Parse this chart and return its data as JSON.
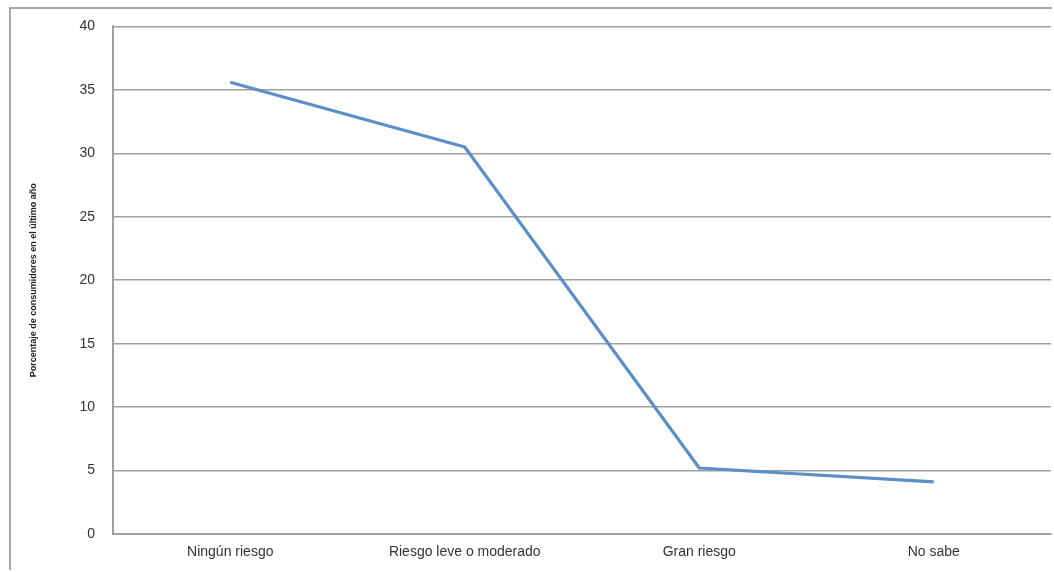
{
  "chart_data": {
    "type": "line",
    "ylabel": "Porcentaje de consumidores en el último año",
    "categories": [
      "Ningún riesgo",
      "Riesgo leve o moderado",
      "Gran riesgo",
      "No sabe"
    ],
    "series": [
      {
        "color": "#5b8fc7",
        "values": [
          35.6,
          30.5,
          5.2,
          4.1
        ]
      }
    ],
    "ylim": [
      0,
      40
    ],
    "yticks": [
      0,
      5,
      10,
      15,
      20,
      25,
      30,
      35,
      40
    ],
    "grid": "y"
  }
}
